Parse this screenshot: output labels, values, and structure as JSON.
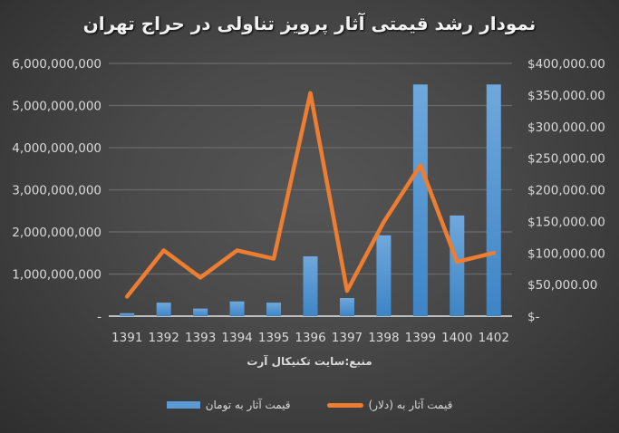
{
  "chart_data": {
    "type": "bar+line",
    "title": "نمودار رشد قیمتی آثار پرویز تناولی در حراج تهران",
    "xlabel": "منبع:سایت تکنیکال آرت",
    "categories": [
      "1391",
      "1392",
      "1393",
      "1394",
      "1395",
      "1396",
      "1397",
      "1398",
      "1399",
      "1400",
      "1402"
    ],
    "series": [
      {
        "name": "قیمت آثار  به تومان",
        "type": "bar",
        "axis": "left",
        "color": "#5b9bd5",
        "values": [
          70000000,
          320000000,
          180000000,
          350000000,
          320000000,
          1420000000,
          430000000,
          1920000000,
          5500000000,
          2390000000,
          5500000000
        ]
      },
      {
        "name": "قیمت آثار  به (دلار)",
        "type": "line",
        "axis": "right",
        "color": "#ed7d31",
        "values": [
          31000,
          104000,
          61000,
          104000,
          91000,
          353000,
          40000,
          149000,
          239000,
          86000,
          100000
        ]
      }
    ],
    "left_axis": {
      "ylim": [
        0,
        6000000000
      ],
      "ticks": [
        "-",
        "1,000,000,000",
        "2,000,000,000",
        "3,000,000,000",
        "4,000,000,000",
        "5,000,000,000",
        "6,000,000,000"
      ]
    },
    "right_axis": {
      "ylim": [
        0,
        400000
      ],
      "ticks": [
        "$-",
        "$50,000.00",
        "$100,000.00",
        "$150,000.00",
        "$200,000.00",
        "$250,000.00",
        "$300,000.00",
        "$350,000.00",
        "$400,000.00"
      ]
    },
    "grid": true,
    "legend_position": "bottom"
  },
  "title": "نمودار رشد قیمتی آثار پرویز تناولی در حراج تهران",
  "source": "منبع:سایت تکنیکال آرت",
  "legend": {
    "dollar": "قیمت آثار  به (دلار)",
    "toman": "قیمت آثار  به تومان"
  }
}
